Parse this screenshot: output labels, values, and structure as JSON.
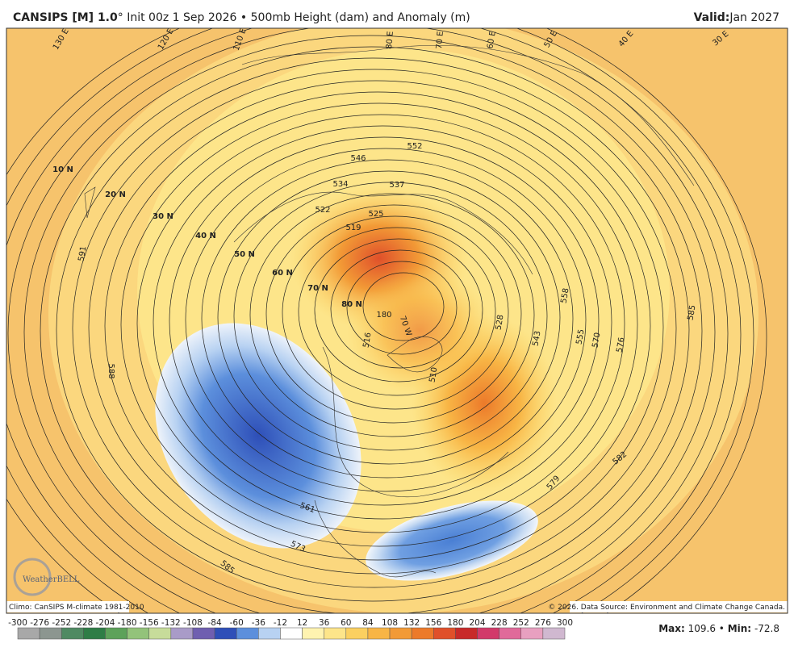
{
  "header": {
    "model": "CANSIPS [M] 1.0",
    "title": "° Init 00z 1 Sep 2026 • 500mb Height (dam) and Anomaly (m)",
    "valid_label": "Valid:",
    "valid": "Jan 2027"
  },
  "map": {
    "contour_labels": [
      591,
      588,
      585,
      573,
      561,
      552,
      546,
      537,
      534,
      525,
      522,
      519,
      516,
      510,
      180,
      "70 W",
      585,
      576,
      570,
      555,
      543,
      582,
      579,
      558,
      528
    ],
    "latitude_labels": [
      "10 N",
      "20 N",
      "30 N",
      "40 N",
      "50 N",
      "60 N",
      "70 N",
      "80 N"
    ],
    "longitude_labels": [
      "130 E",
      "120 E",
      "110 E",
      "80 E",
      "70 E",
      "60 E",
      "50 E",
      "40 E",
      "30 E"
    ],
    "logo": "WeatherBELL",
    "climo": "Climo: CanSIPS M-climate 1981-2010",
    "copyright": "© 2026. Data Source: Environment and Climate Change Canada."
  },
  "colorbar": {
    "labels": [
      -300,
      -276,
      -252,
      -228,
      -204,
      -180,
      -156,
      -132,
      -108,
      -84,
      -60,
      -36,
      -12,
      12,
      36,
      60,
      84,
      108,
      132,
      156,
      180,
      204,
      228,
      252,
      276,
      300
    ],
    "colors": [
      "#a8a8a8",
      "#8c9690",
      "#4f8a62",
      "#2e7d46",
      "#5da25a",
      "#93c37a",
      "#c7dc9a",
      "#a99bc8",
      "#6f5fb0",
      "#2e4fb8",
      "#5c8fdc",
      "#b8d2f2",
      "#ffffff",
      "#fff3b0",
      "#fde58a",
      "#fbd060",
      "#f8b545",
      "#f29a36",
      "#ec7a2a",
      "#e0502a",
      "#c82a2a",
      "#d23a6a",
      "#e06a9a",
      "#e8a0c0",
      "#d0b8d0"
    ]
  },
  "footer": {
    "max_label": "Max:",
    "max": 109.6,
    "separator": "•",
    "min_label": "Min:",
    "min": -72.8
  }
}
